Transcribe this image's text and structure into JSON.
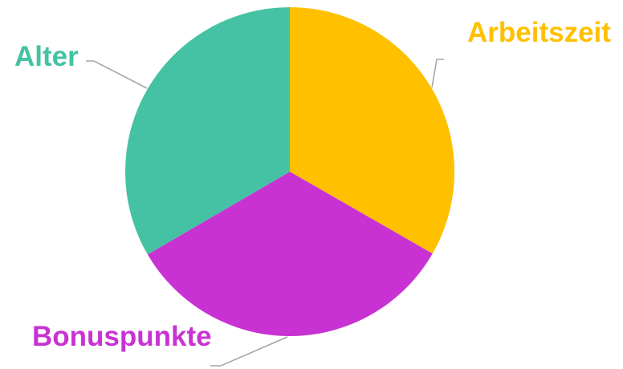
{
  "chart_data": {
    "type": "pie",
    "title": "",
    "start_angle_deg": 0,
    "direction": "clockwise",
    "legend": "none",
    "slices": [
      {
        "label": "Arbeitszeit",
        "value": 33.3,
        "color": "#ffc000"
      },
      {
        "label": "Bonuspunkte",
        "value": 33.3,
        "color": "#c832d2"
      },
      {
        "label": "Alter",
        "value": 33.4,
        "color": "#44c2a3"
      }
    ]
  }
}
